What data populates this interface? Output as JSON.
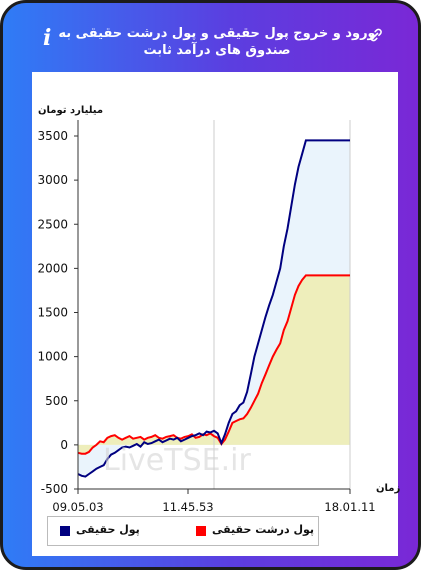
{
  "header": {
    "title": "ورود و خروج پول حقیقی و پول درشت حقیقی به صندوق های درآمد ثابت",
    "info_icon_text": "i"
  },
  "chart_data": {
    "type": "line",
    "ylabel": "میلیارد تومان",
    "xlabel": "زمان",
    "ylim": [
      -500,
      3500
    ],
    "yticks": [
      -500,
      0,
      500,
      1000,
      1500,
      2000,
      2500,
      3000,
      3500
    ],
    "x_tick_labels": [
      "09.05.03",
      "11.45.53",
      "18.01.11"
    ],
    "watermark": "LiveTSE.ir",
    "grid": "vertical",
    "legend_position": "bottom",
    "series": [
      {
        "name": "پول حقیقی",
        "color": "#000080",
        "fill": "#eaf4fc",
        "values": [
          -330,
          -350,
          -360,
          -330,
          -300,
          -270,
          -250,
          -230,
          -160,
          -110,
          -90,
          -60,
          -30,
          -20,
          -30,
          -10,
          10,
          -20,
          30,
          10,
          20,
          40,
          60,
          30,
          50,
          70,
          60,
          80,
          40,
          60,
          80,
          100,
          110,
          130,
          110,
          150,
          140,
          160,
          130,
          20,
          120,
          250,
          350,
          380,
          450,
          480,
          600,
          800,
          1000,
          1150,
          1300,
          1450,
          1580,
          1700,
          1850,
          2000,
          2250,
          2450,
          2700,
          2950,
          3150,
          3300,
          3450,
          3450,
          3450,
          3450,
          3450,
          3450,
          3450,
          3450,
          3450,
          3450,
          3450,
          3450,
          3450
        ]
      },
      {
        "name": "پول درشت حقیقی",
        "color": "#ff0000",
        "fill": "#eeeebb",
        "values": [
          -90,
          -100,
          -100,
          -80,
          -30,
          0,
          40,
          30,
          80,
          100,
          110,
          80,
          60,
          80,
          100,
          70,
          80,
          90,
          60,
          80,
          90,
          110,
          80,
          70,
          90,
          100,
          110,
          80,
          70,
          90,
          100,
          120,
          80,
          90,
          120,
          110,
          130,
          100,
          80,
          10,
          60,
          150,
          250,
          270,
          290,
          300,
          350,
          420,
          500,
          580,
          700,
          800,
          900,
          1000,
          1080,
          1150,
          1300,
          1400,
          1550,
          1700,
          1800,
          1870,
          1920,
          1920,
          1920,
          1920,
          1920,
          1920,
          1920,
          1920,
          1920,
          1920,
          1920,
          1920,
          1920
        ]
      }
    ]
  }
}
